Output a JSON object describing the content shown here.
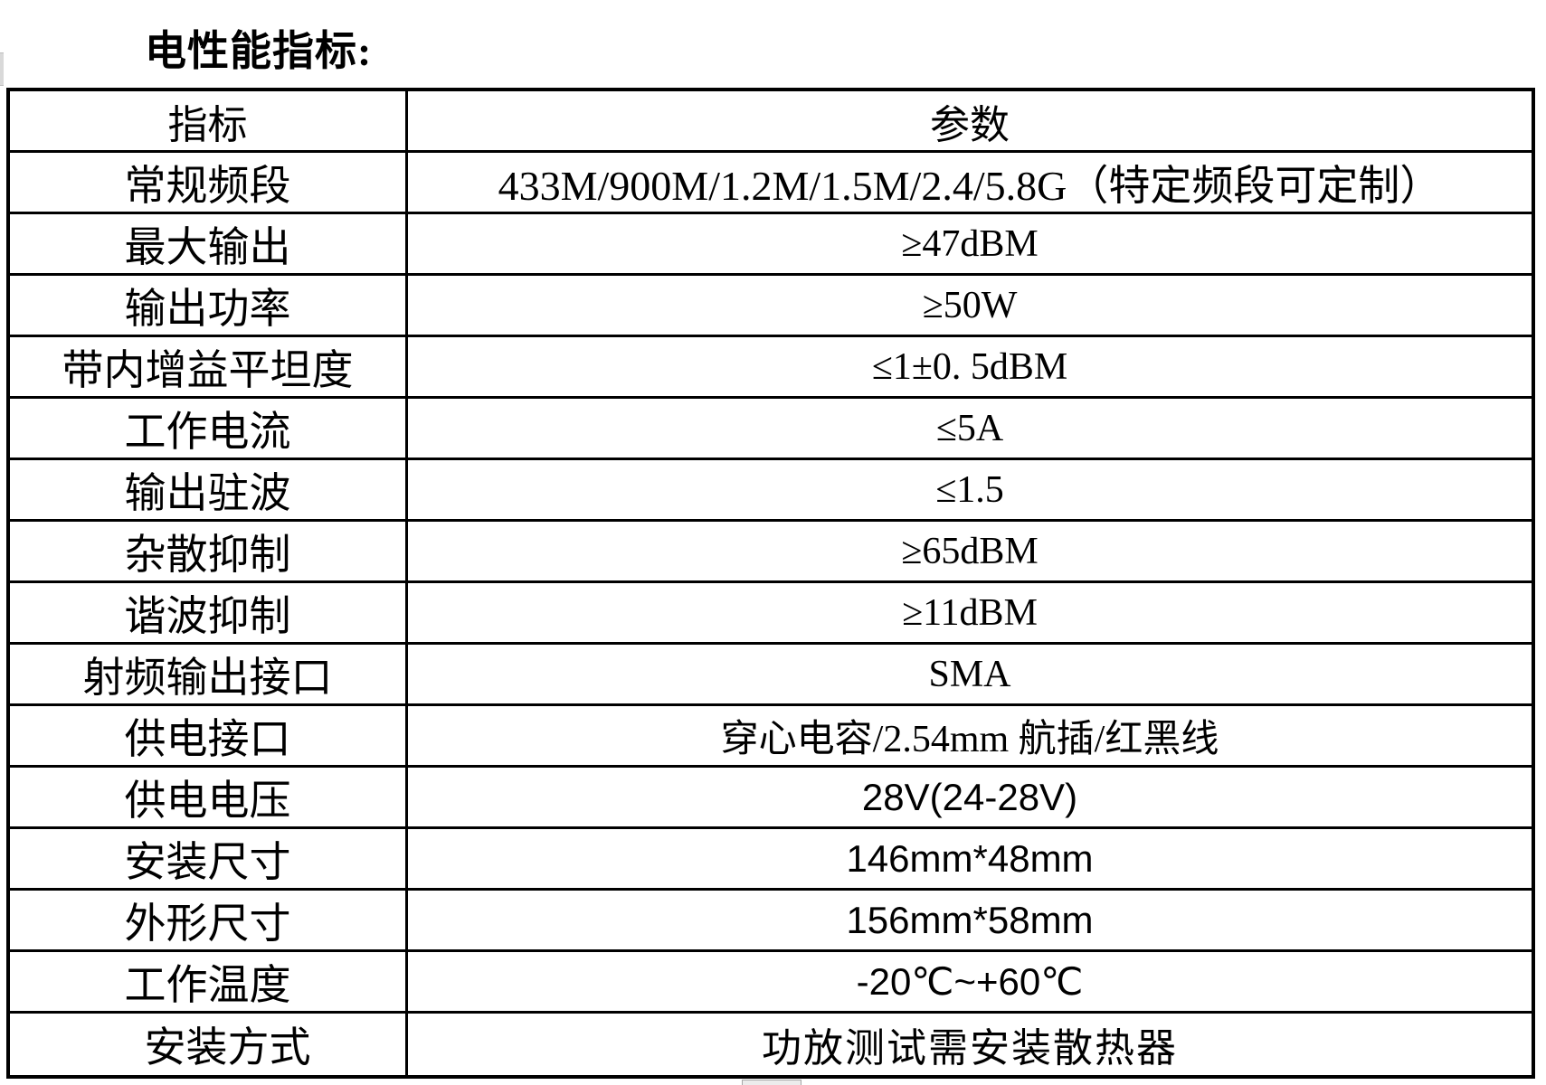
{
  "title": "电性能指标:",
  "colors": {
    "text": "#000000",
    "table_border": "#000000",
    "background": "#ffffff",
    "left_edge_bar": "#d9d9d9",
    "bottom_artifact_fill": "#ececec",
    "bottom_artifact_border": "#a6a6a6"
  },
  "table": {
    "header": {
      "col1": "指标",
      "col2": "参数"
    },
    "rows": [
      {
        "label": "常规频段",
        "value": "433M/900M/1.2M/1.5M/2.4/5.8G（特定频段可定制）"
      },
      {
        "label": "最大输出",
        "value": "≥47dBM"
      },
      {
        "label": "输出功率",
        "value": "≥50W"
      },
      {
        "label": "带内增益平坦度",
        "value": "≤1±0. 5dBM"
      },
      {
        "label": "工作电流",
        "value": "≤5A"
      },
      {
        "label": "输出驻波",
        "value": "≤1.5"
      },
      {
        "label": "杂散抑制",
        "value": "≥65dBM"
      },
      {
        "label": "谐波抑制",
        "value": "≥11dBM"
      },
      {
        "label": "射频输出接口",
        "value": "SMA"
      },
      {
        "label": "供电接口",
        "value": "穿心电容/2.54mm 航插/红黑线"
      },
      {
        "label": "供电电压",
        "value": "28V(24-28V)"
      },
      {
        "label": "安装尺寸",
        "value": "146mm*48mm"
      },
      {
        "label": "外形尺寸",
        "value": "156mm*58mm"
      },
      {
        "label": "工作温度",
        "value": "-20℃~+60℃"
      },
      {
        "label": "安装方式",
        "value": "功放测试需安装散热器"
      }
    ]
  }
}
